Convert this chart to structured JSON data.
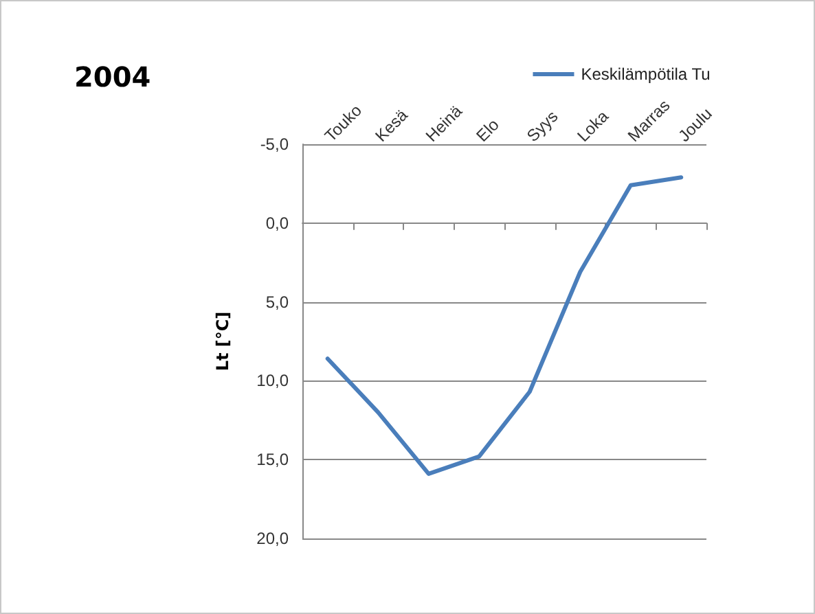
{
  "chart_data": {
    "type": "line",
    "title": "2004",
    "ylabel": "Lt [°C]",
    "categories": [
      "Touko",
      "Kesä",
      "Heinä",
      "Elo",
      "Syys",
      "Loka",
      "Marras",
      "Joulu"
    ],
    "series": [
      {
        "name": "Keskilämpötila Tu",
        "color": "#4a7ebb",
        "values": [
          8.6,
          12.0,
          15.9,
          14.8,
          10.7,
          3.1,
          -2.4,
          -2.9
        ]
      }
    ],
    "ylim": [
      20,
      -5
    ],
    "yticks": [
      {
        "value": -5,
        "label": "-5,0"
      },
      {
        "value": 0,
        "label": "0,0"
      },
      {
        "value": 5,
        "label": "5,0"
      },
      {
        "value": 10,
        "label": "10,0"
      },
      {
        "value": 15,
        "label": "15,0"
      },
      {
        "value": 20,
        "label": "20,0"
      }
    ],
    "grid": "y",
    "legend": "top right",
    "marker": "none",
    "line_style": "solid"
  }
}
